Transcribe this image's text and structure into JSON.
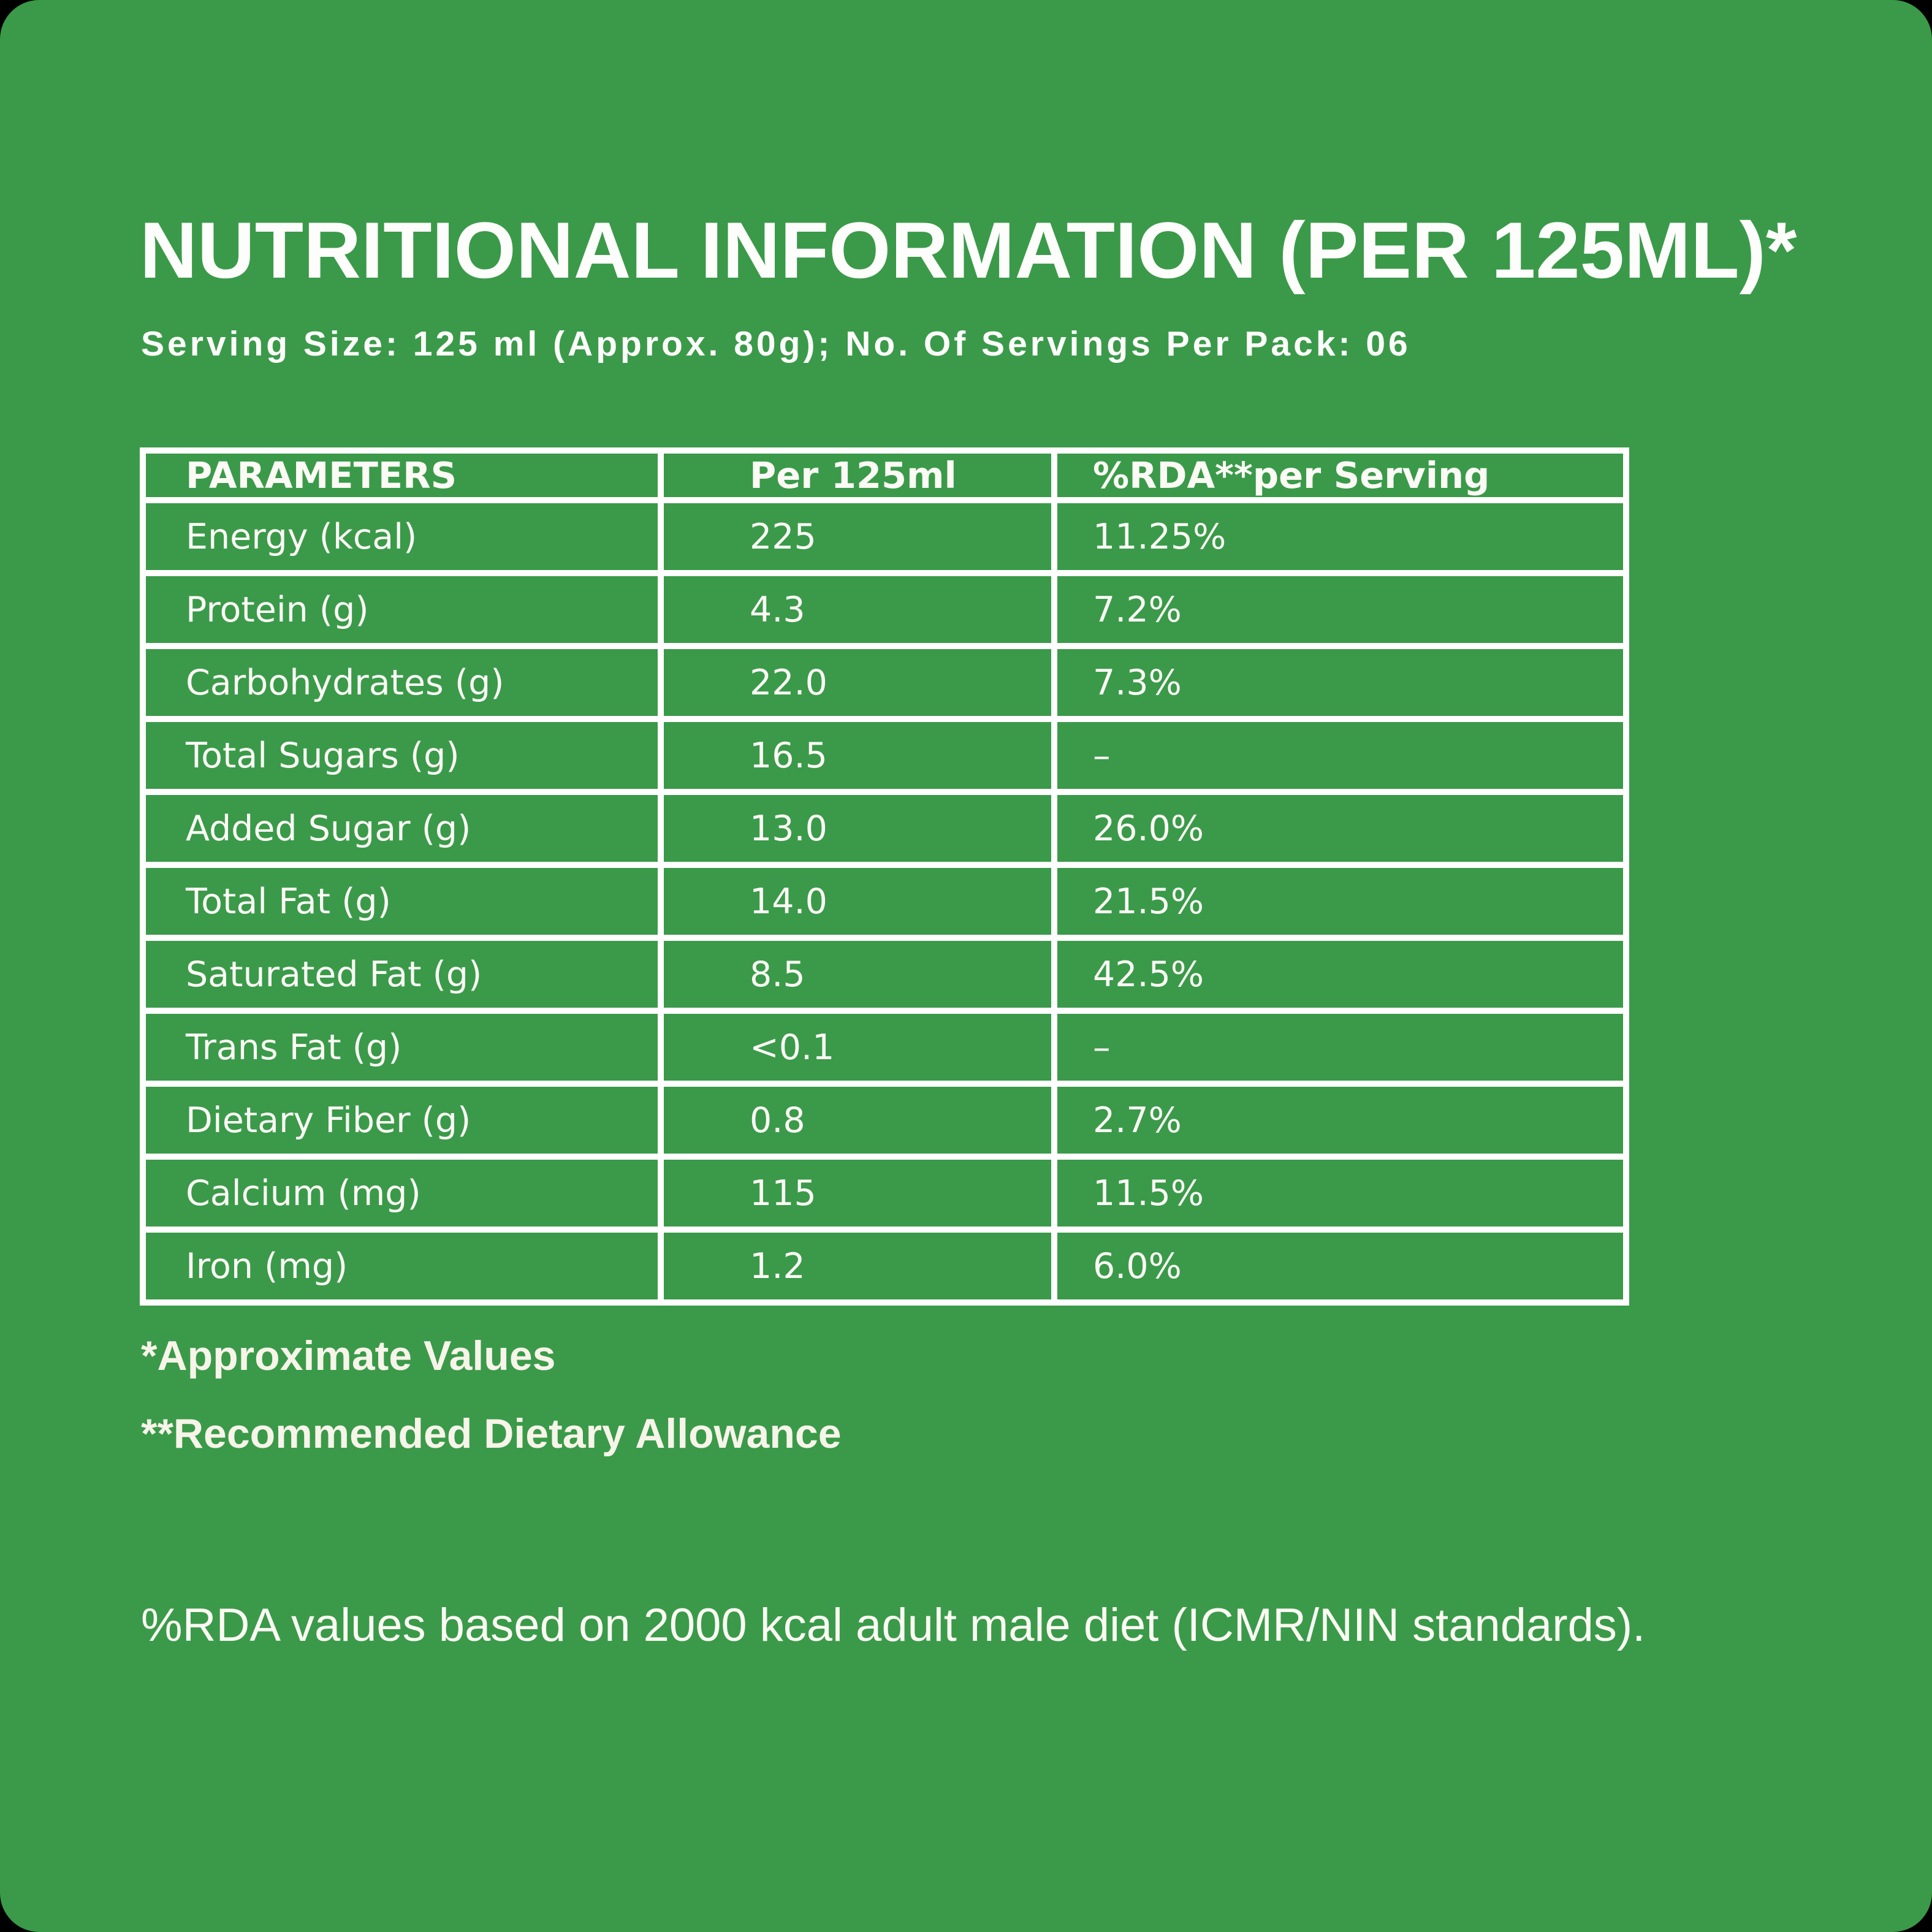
{
  "page": {
    "title": "NUTRITIONAL INFORMATION (PER 125ML)*",
    "serving_line": "Serving Size: 125 ml (Approx. 80g); No. Of Servings Per Pack: 06",
    "footnote_approx": "*Approximate Values",
    "footnote_rda": "**Recommended Dietary Allowance",
    "rda_note": "%RDA values based on 2000 kcal adult male diet (ICMR/NIN standards).",
    "colors": {
      "background_green": "#3A9A49",
      "corner_black": "#000000",
      "text_white": "#FFFFFF",
      "text_cream": "#F7F4E9",
      "table_border": "#FFFFFF"
    }
  },
  "table": {
    "headers": [
      "PARAMETERS",
      "Per 125ml",
      "%RDA**per Serving"
    ],
    "rows": [
      {
        "parameter": "Energy (kcal)",
        "per_125ml": "225",
        "rda_per_serving": "11.25%"
      },
      {
        "parameter": "Protein (g)",
        "per_125ml": "4.3",
        "rda_per_serving": "7.2%"
      },
      {
        "parameter": "Carbohydrates (g)",
        "per_125ml": "22.0",
        "rda_per_serving": "7.3%"
      },
      {
        "parameter": "Total Sugars (g)",
        "per_125ml": "16.5",
        "rda_per_serving": "–"
      },
      {
        "parameter": "Added Sugar (g)",
        "per_125ml": "13.0",
        "rda_per_serving": "26.0%"
      },
      {
        "parameter": "Total Fat (g)",
        "per_125ml": "14.0",
        "rda_per_serving": "21.5%"
      },
      {
        "parameter": "Saturated Fat (g)",
        "per_125ml": "8.5",
        "rda_per_serving": "42.5%"
      },
      {
        "parameter": "Trans Fat (g)",
        "per_125ml": "<0.1",
        "rda_per_serving": "–"
      },
      {
        "parameter": "Dietary Fiber (g)",
        "per_125ml": "0.8",
        "rda_per_serving": "2.7%"
      },
      {
        "parameter": "Calcium (mg)",
        "per_125ml": "115",
        "rda_per_serving": "11.5%"
      },
      {
        "parameter": "Iron (mg)",
        "per_125ml": "1.2",
        "rda_per_serving": "6.0%"
      }
    ]
  }
}
